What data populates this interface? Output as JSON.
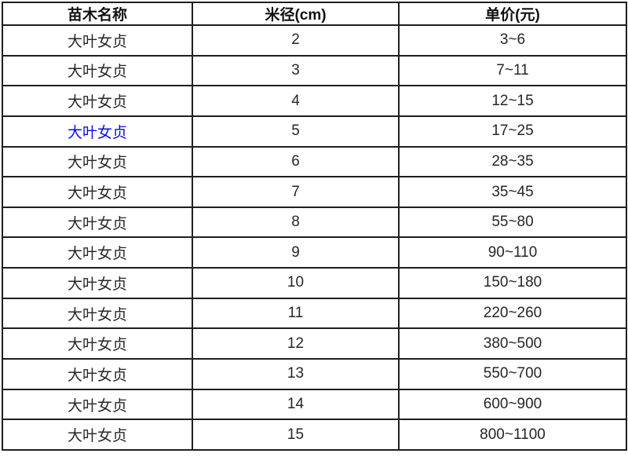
{
  "chart_data": {
    "type": "table",
    "title": "",
    "columns": [
      "苗木名称",
      "米径(cm)",
      "单价(元)"
    ],
    "rows": [
      [
        "大叶女贞",
        "2",
        "3~6"
      ],
      [
        "大叶女贞",
        "3",
        "7~11"
      ],
      [
        "大叶女贞",
        "4",
        "12~15"
      ],
      [
        "大叶女贞",
        "5",
        "17~25"
      ],
      [
        "大叶女贞",
        "6",
        "28~35"
      ],
      [
        "大叶女贞",
        "7",
        "35~45"
      ],
      [
        "大叶女贞",
        "8",
        "55~80"
      ],
      [
        "大叶女贞",
        "9",
        "90~110"
      ],
      [
        "大叶女贞",
        "10",
        "150~180"
      ],
      [
        "大叶女贞",
        "11",
        "220~260"
      ],
      [
        "大叶女贞",
        "12",
        "380~500"
      ],
      [
        "大叶女贞",
        "13",
        "550~700"
      ],
      [
        "大叶女贞",
        "14",
        "600~900"
      ],
      [
        "大叶女贞",
        "15",
        "800~1100"
      ]
    ],
    "linked_row_index": 3,
    "grid": true,
    "legend_position": "none"
  },
  "colors": {
    "link": "#0b0be8",
    "border": "#1e1e1e",
    "text": "#262626",
    "header_text": "#111111",
    "background": "#ffffff"
  }
}
